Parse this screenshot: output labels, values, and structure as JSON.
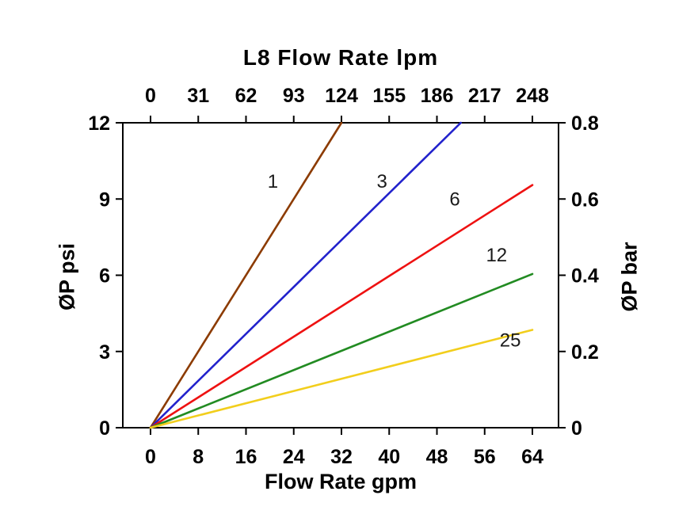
{
  "chart_data": {
    "type": "line",
    "title_top": "L8  Flow Rate lpm",
    "xlabel_bottom": "Flow Rate gpm",
    "ylabel_left": "ØP psi",
    "ylabel_right": "ØP bar",
    "xlim": [
      0,
      64
    ],
    "ylim": [
      0,
      12
    ],
    "x_ticks_bottom": [
      0,
      8,
      16,
      24,
      32,
      40,
      48,
      56,
      64
    ],
    "x_ticks_top": [
      0,
      31,
      62,
      93,
      124,
      155,
      186,
      217,
      248
    ],
    "y_ticks_left": [
      0,
      3,
      6,
      9,
      12
    ],
    "y_ticks_right": [
      0,
      0.2,
      0.4,
      0.6,
      0.8
    ],
    "grid": false,
    "legend": "inline-labels",
    "axis_color": "#000000",
    "series": [
      {
        "name": "1",
        "color": "#8C3B00",
        "points": [
          [
            0,
            0
          ],
          [
            32,
            12
          ]
        ],
        "label_at": [
          20.5,
          9.45
        ]
      },
      {
        "name": "3",
        "color": "#2222CC",
        "points": [
          [
            0,
            0
          ],
          [
            52,
            12
          ]
        ],
        "label_at": [
          38.8,
          9.45
        ]
      },
      {
        "name": "6",
        "color": "#EE1111",
        "points": [
          [
            0,
            0
          ],
          [
            64,
            9.55
          ]
        ],
        "label_at": [
          51.0,
          8.75
        ]
      },
      {
        "name": "12",
        "color": "#228B22",
        "points": [
          [
            0,
            0
          ],
          [
            64,
            6.05
          ]
        ],
        "label_at": [
          58.0,
          6.55
        ]
      },
      {
        "name": "25",
        "color": "#F2CE1C",
        "points": [
          [
            0,
            0
          ],
          [
            64,
            3.85
          ]
        ],
        "label_at": [
          60.3,
          3.2
        ]
      }
    ]
  }
}
